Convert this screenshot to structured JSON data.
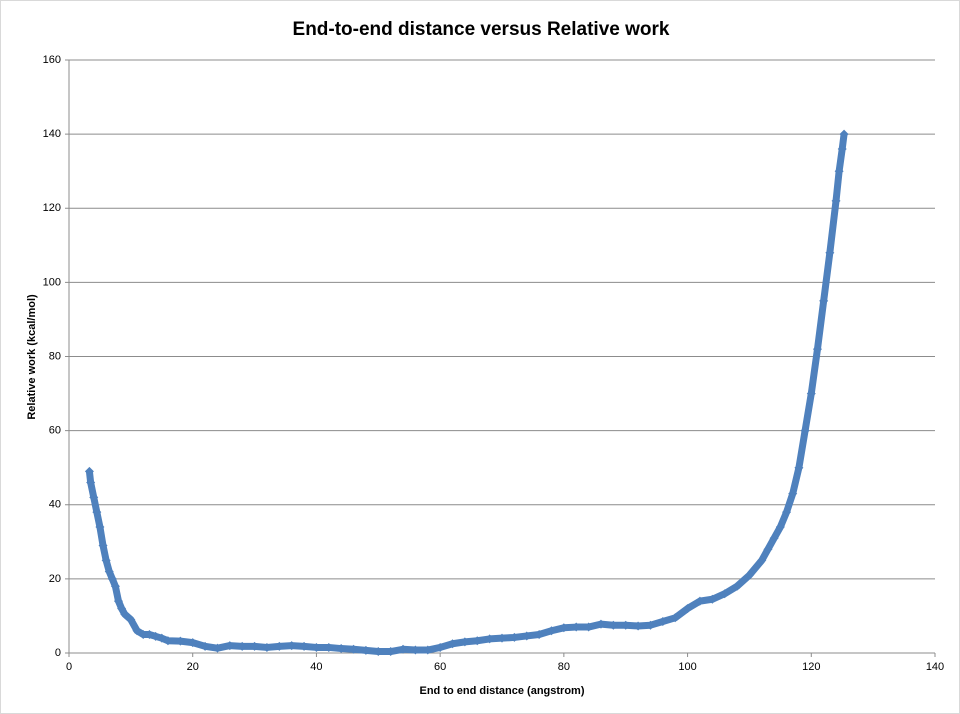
{
  "chart_data": {
    "type": "scatter",
    "title": "End-to-end distance versus Relative work",
    "x_label": "End to end distance (angstrom)",
    "y_label": "Relative work (kcal/mol)",
    "xlim": [
      0,
      140
    ],
    "xticks": [
      0,
      20,
      40,
      60,
      80,
      100,
      120,
      140
    ],
    "ylim": [
      0,
      160
    ],
    "yticks": [
      0,
      20,
      40,
      60,
      80,
      100,
      120,
      140,
      160
    ],
    "grid": true,
    "color": "#4f81bd",
    "x": [
      3.3,
      3.5,
      4,
      4.5,
      5,
      5.5,
      6,
      6.5,
      7,
      7.5,
      8,
      8.5,
      9,
      10,
      11,
      12,
      13,
      14,
      15,
      16,
      18,
      20,
      22,
      24,
      26,
      28,
      30,
      32,
      34,
      36,
      38,
      40,
      42,
      44,
      46,
      48,
      50,
      52,
      54,
      56,
      58,
      60,
      62,
      64,
      66,
      68,
      70,
      72,
      74,
      76,
      78,
      80,
      82,
      84,
      86,
      88,
      90,
      92,
      94,
      96,
      98,
      100,
      102,
      104,
      106,
      108,
      110,
      112,
      113,
      114,
      115,
      116,
      117,
      118,
      119,
      120,
      121,
      122,
      123,
      124,
      124.5,
      125,
      125.3
    ],
    "values": [
      49,
      46,
      42,
      38,
      34,
      29,
      25,
      22,
      20,
      18,
      14,
      12,
      10.5,
      9,
      6,
      5,
      5,
      4.5,
      4,
      3.3,
      3.2,
      2.8,
      1.8,
      1.3,
      2,
      1.8,
      1.8,
      1.5,
      1.8,
      2,
      1.8,
      1.5,
      1.5,
      1.2,
      1,
      0.7,
      0.4,
      0.4,
      1,
      0.8,
      0.8,
      1.5,
      2.5,
      3,
      3.3,
      3.8,
      4,
      4.2,
      4.6,
      5,
      6,
      6.8,
      7,
      7,
      7.8,
      7.5,
      7.5,
      7.3,
      7.5,
      8.5,
      9.5,
      12,
      14,
      14.5,
      16,
      18,
      21,
      25,
      28,
      31,
      34,
      38,
      43,
      50,
      60,
      70,
      82,
      95,
      108,
      122,
      130,
      136,
      140
    ]
  }
}
